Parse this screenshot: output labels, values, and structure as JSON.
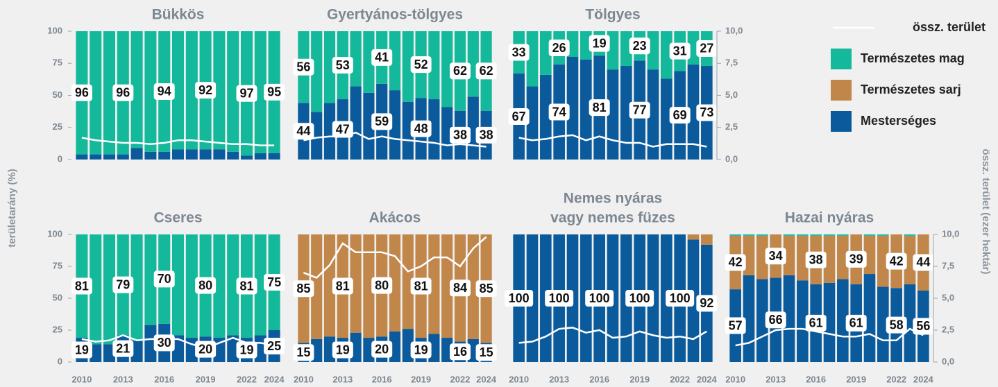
{
  "chart_data": [
    {
      "type": "bar",
      "title": "Bükkös",
      "ylabel": "területarány (%)",
      "categories": [
        null,
        null,
        null,
        null,
        null,
        null,
        null,
        null,
        null,
        null,
        null,
        null,
        null,
        null,
        null
      ],
      "ylim": [
        0,
        100
      ],
      "yticks": [
        0,
        25,
        50,
        75,
        100
      ],
      "y2lim": [
        0,
        10
      ],
      "series": [
        {
          "name": "Mesterséges",
          "color": "#0b5b9c",
          "values": [
            4,
            4,
            4,
            4,
            9,
            6,
            6,
            8,
            8,
            8,
            8,
            6,
            3,
            5,
            5
          ]
        },
        {
          "name": "Természetes sarj",
          "color": "#c1864a",
          "values": [
            0,
            0,
            0,
            0,
            0,
            0,
            0,
            0,
            0,
            0,
            0,
            0,
            0,
            0,
            0
          ]
        },
        {
          "name": "Természetes mag",
          "color": "#14b89a",
          "labels": true,
          "values": [
            96,
            96,
            96,
            96,
            91,
            94,
            94,
            92,
            92,
            92,
            92,
            94,
            97,
            95,
            95
          ]
        },
        {
          "name": "össz. terület",
          "color": "#ffffff",
          "kind": "line",
          "axis": "y2",
          "values": [
            1.7,
            1.5,
            1.4,
            1.3,
            1.3,
            1.2,
            1.3,
            1.5,
            1.5,
            1.4,
            1.3,
            1.2,
            1.2,
            1.1,
            1.1
          ]
        }
      ]
    },
    {
      "type": "bar",
      "title": "Gyertyános-tölgyes",
      "categories": [
        null,
        null,
        null,
        null,
        null,
        null,
        null,
        null,
        null,
        null,
        null,
        null,
        null,
        null,
        null
      ],
      "ylim": [
        0,
        100
      ],
      "y2lim": [
        0,
        10
      ],
      "series": [
        {
          "name": "Mesterséges",
          "color": "#0b5b9c",
          "labels": true,
          "values": [
            44,
            37,
            44,
            47,
            57,
            52,
            59,
            54,
            45,
            48,
            47,
            41,
            38,
            49,
            38
          ]
        },
        {
          "name": "Természetes sarj",
          "color": "#c1864a",
          "values": [
            0,
            0,
            0,
            0,
            0,
            0,
            0,
            0,
            0,
            0,
            0,
            0,
            0,
            0,
            0
          ]
        },
        {
          "name": "Természetes mag",
          "color": "#14b89a",
          "labels": true,
          "values": [
            56,
            63,
            56,
            53,
            43,
            48,
            41,
            46,
            55,
            52,
            53,
            59,
            62,
            51,
            62
          ]
        },
        {
          "name": "össz. terület",
          "color": "#ffffff",
          "kind": "line",
          "axis": "y2",
          "values": [
            1.5,
            1.7,
            1.8,
            1.8,
            2.1,
            1.6,
            1.8,
            1.6,
            1.5,
            1.4,
            1.3,
            1.1,
            1.2,
            1.1,
            1.0
          ]
        }
      ]
    },
    {
      "type": "bar",
      "title": "Tölgyes",
      "y2label": "össz. terület (ezer hektár)",
      "categories": [
        null,
        null,
        null,
        null,
        null,
        null,
        null,
        null,
        null,
        null,
        null,
        null,
        null,
        null,
        null
      ],
      "ylim": [
        0,
        100
      ],
      "y2lim": [
        0,
        10
      ],
      "y2ticks": [
        {
          "value": 0,
          "label": "0,0"
        },
        {
          "value": 2.5,
          "label": "2,5"
        },
        {
          "value": 5,
          "label": "5,0"
        },
        {
          "value": 7.5,
          "label": "7,5"
        },
        {
          "value": 10,
          "label": "10,0"
        }
      ],
      "series": [
        {
          "name": "Mesterséges",
          "color": "#0b5b9c",
          "labels": true,
          "values": [
            67,
            57,
            66,
            74,
            80,
            78,
            81,
            70,
            73,
            77,
            70,
            63,
            69,
            74,
            73
          ]
        },
        {
          "name": "Természetes sarj",
          "color": "#c1864a",
          "values": [
            0,
            0,
            0,
            0,
            0,
            0,
            0,
            0,
            0,
            0,
            0,
            0,
            0,
            0,
            0
          ]
        },
        {
          "name": "Természetes mag",
          "color": "#14b89a",
          "labels": true,
          "values": [
            33,
            43,
            34,
            26,
            20,
            22,
            19,
            30,
            27,
            23,
            30,
            37,
            31,
            26,
            27
          ]
        },
        {
          "name": "össz. terület",
          "color": "#ffffff",
          "kind": "line",
          "axis": "y2",
          "values": [
            1.7,
            1.5,
            1.6,
            1.8,
            1.9,
            1.5,
            1.8,
            1.5,
            1.3,
            1.3,
            1.0,
            1.2,
            1.2,
            1.2,
            1.0
          ]
        }
      ]
    },
    {
      "type": "bar",
      "title": "Cseres",
      "categories": [
        2010,
        null,
        null,
        2013,
        null,
        null,
        2016,
        null,
        null,
        2019,
        null,
        null,
        2022,
        null,
        2024
      ],
      "ylim": [
        0,
        100
      ],
      "yticks": [
        0,
        25,
        50,
        75,
        100
      ],
      "y2lim": [
        0,
        10
      ],
      "series": [
        {
          "name": "Mesterséges",
          "color": "#0b5b9c",
          "labels": true,
          "values": [
            19,
            14,
            14,
            21,
            17,
            29,
            30,
            21,
            19,
            20,
            19,
            21,
            19,
            21,
            25
          ]
        },
        {
          "name": "Természetes sarj",
          "color": "#c1864a",
          "values": [
            0,
            0,
            0,
            0,
            0,
            0,
            0,
            0,
            0,
            0,
            0,
            0,
            0,
            0,
            0
          ]
        },
        {
          "name": "Természetes mag",
          "color": "#14b89a",
          "labels": true,
          "values": [
            81,
            86,
            86,
            79,
            83,
            71,
            70,
            79,
            81,
            80,
            81,
            79,
            81,
            79,
            75
          ]
        },
        {
          "name": "össz. terület",
          "color": "#ffffff",
          "kind": "line",
          "axis": "y2",
          "values": [
            1.8,
            1.6,
            1.7,
            2.1,
            1.7,
            1.8,
            1.8,
            1.8,
            1.4,
            1.1,
            1.5,
            1.9,
            1.5,
            1.5,
            1.3
          ]
        }
      ]
    },
    {
      "type": "bar",
      "title": "Akácos",
      "categories": [
        2010,
        null,
        null,
        2013,
        null,
        null,
        2016,
        null,
        null,
        2019,
        null,
        null,
        2022,
        null,
        2024
      ],
      "ylim": [
        0,
        100
      ],
      "y2lim": [
        0,
        10
      ],
      "series": [
        {
          "name": "Mesterséges",
          "color": "#0b5b9c",
          "labels": true,
          "values": [
            15,
            18,
            20,
            19,
            23,
            19,
            20,
            24,
            26,
            19,
            22,
            19,
            16,
            18,
            15
          ]
        },
        {
          "name": "Természetes sarj",
          "color": "#c1864a",
          "labels": true,
          "values": [
            85,
            82,
            80,
            81,
            77,
            81,
            80,
            76,
            74,
            81,
            78,
            81,
            84,
            82,
            85
          ]
        },
        {
          "name": "Természetes mag",
          "color": "#14b89a",
          "values": [
            0,
            0,
            0,
            0,
            0,
            0,
            0,
            0,
            0,
            0,
            0,
            0,
            0,
            0,
            0
          ]
        },
        {
          "name": "össz. terület",
          "color": "#ffffff",
          "kind": "line",
          "axis": "y2",
          "values": [
            7.0,
            6.6,
            7.6,
            9.3,
            8.6,
            8.6,
            8.6,
            8.3,
            7.1,
            7.5,
            8.2,
            8.2,
            7.5,
            8.9,
            9.8
          ]
        }
      ]
    },
    {
      "type": "bar",
      "title": [
        "Nemes nyáras",
        "vagy nemes füzes"
      ],
      "categories": [
        2010,
        null,
        null,
        2013,
        null,
        null,
        2016,
        null,
        null,
        2019,
        null,
        null,
        2022,
        null,
        2024
      ],
      "ylim": [
        0,
        100
      ],
      "y2lim": [
        0,
        10
      ],
      "series": [
        {
          "name": "Mesterséges",
          "color": "#0b5b9c",
          "labels": true,
          "values": [
            100,
            100,
            100,
            100,
            100,
            100,
            100,
            100,
            100,
            100,
            100,
            100,
            100,
            96,
            92
          ]
        },
        {
          "name": "Természetes sarj",
          "color": "#c1864a",
          "values": [
            0,
            0,
            0,
            0,
            0,
            0,
            0,
            0,
            0,
            0,
            0,
            0,
            0,
            4,
            8
          ]
        },
        {
          "name": "Természetes mag",
          "color": "#14b89a",
          "values": [
            0,
            0,
            0,
            0,
            0,
            0,
            0,
            0,
            0,
            0,
            0,
            0,
            0,
            0,
            0
          ]
        },
        {
          "name": "össz. terület",
          "color": "#ffffff",
          "kind": "line",
          "axis": "y2",
          "values": [
            1.5,
            1.6,
            2.0,
            2.6,
            2.7,
            2.3,
            2.5,
            1.9,
            2.0,
            2.4,
            2.1,
            1.9,
            2.0,
            1.8,
            2.4
          ]
        }
      ]
    },
    {
      "type": "bar",
      "title": "Hazai nyáras",
      "categories": [
        2010,
        null,
        null,
        2013,
        null,
        null,
        2016,
        null,
        null,
        2019,
        null,
        null,
        2022,
        null,
        2024
      ],
      "ylim": [
        0,
        100
      ],
      "y2lim": [
        0,
        10
      ],
      "y2ticks": [
        {
          "value": 0,
          "label": "0,0"
        },
        {
          "value": 2.5,
          "label": "2,5"
        },
        {
          "value": 5,
          "label": "5,0"
        },
        {
          "value": 7.5,
          "label": "7,5"
        },
        {
          "value": 10,
          "label": "10,0"
        }
      ],
      "series": [
        {
          "name": "Mesterséges",
          "color": "#0b5b9c",
          "labels": true,
          "values": [
            57,
            68,
            65,
            66,
            68,
            64,
            61,
            62,
            65,
            61,
            69,
            59,
            58,
            61,
            56
          ]
        },
        {
          "name": "Természetes sarj",
          "color": "#c1864a",
          "labels": true,
          "values": [
            42,
            31,
            34,
            34,
            31,
            35,
            38,
            37,
            34,
            39,
            30,
            40,
            42,
            38,
            44
          ]
        },
        {
          "name": "Természetes mag",
          "color": "#14b89a",
          "values": [
            1,
            1,
            1,
            0,
            1,
            1,
            1,
            1,
            1,
            0,
            1,
            1,
            0,
            1,
            0
          ]
        },
        {
          "name": "össz. terület",
          "color": "#ffffff",
          "kind": "line",
          "axis": "y2",
          "values": [
            1.3,
            1.5,
            2.0,
            2.5,
            2.6,
            2.6,
            2.4,
            2.2,
            2.0,
            2.0,
            2.2,
            1.7,
            1.7,
            2.6,
            2.1
          ]
        }
      ]
    }
  ]
}
